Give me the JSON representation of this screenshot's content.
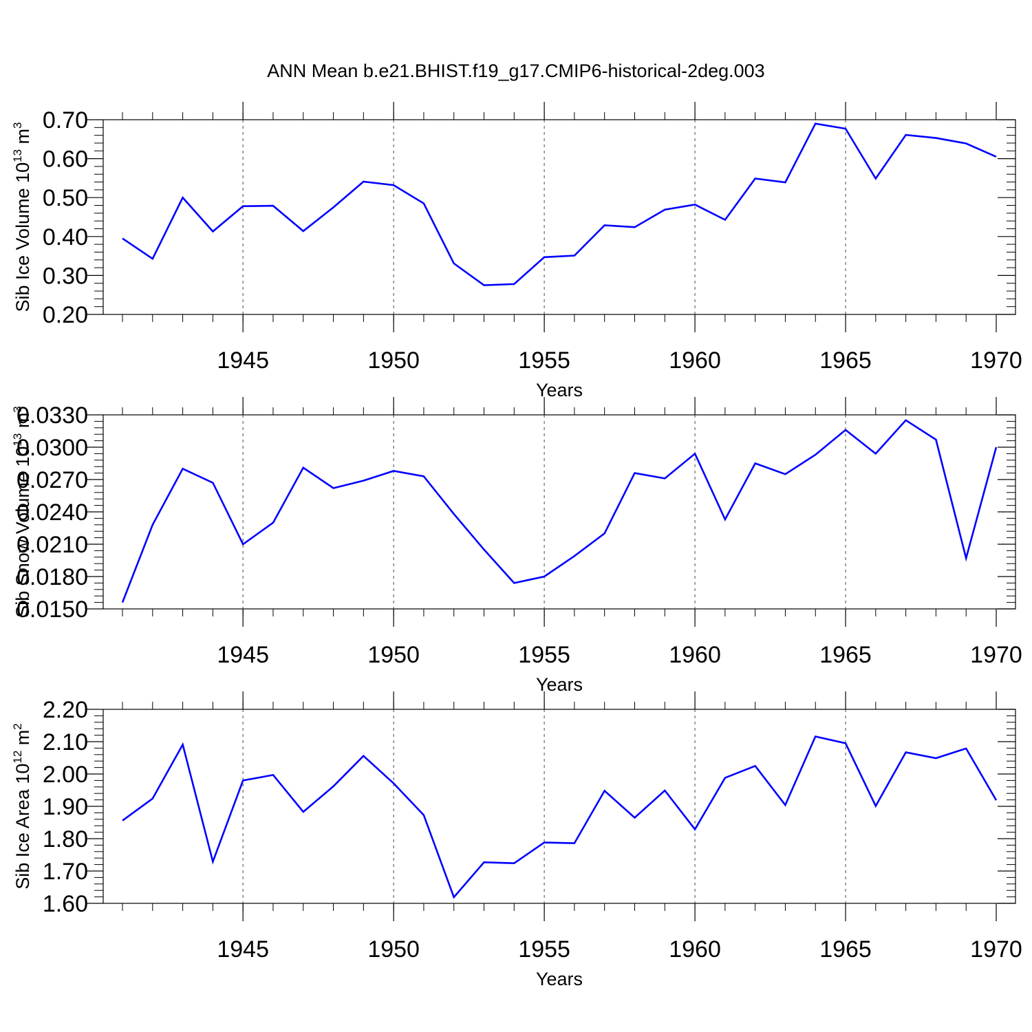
{
  "title": "ANN Mean b.e21.BHIST.f19_g17.CMIP6-historical-2deg.003",
  "line_color": "#0000ff",
  "x_ticks": [
    1945,
    1950,
    1955,
    1960,
    1965,
    1970
  ],
  "chart_data": [
    {
      "type": "line",
      "ylabel_base": "Sib Ice Volume 10",
      "ylabel_exp": "13",
      "ylabel_unit": " m",
      "ylabel_unit_exp": "3",
      "xlabel": "Years",
      "xlim": [
        1941,
        1970
      ],
      "ylim": [
        0.2,
        0.7
      ],
      "y_ticks": [
        "0.20",
        "0.30",
        "0.40",
        "0.50",
        "0.60",
        "0.70"
      ],
      "x": [
        1941,
        1942,
        1943,
        1944,
        1945,
        1946,
        1947,
        1948,
        1949,
        1950,
        1951,
        1952,
        1953,
        1954,
        1955,
        1956,
        1957,
        1958,
        1959,
        1960,
        1961,
        1962,
        1963,
        1964,
        1965,
        1966,
        1967,
        1968,
        1969,
        1970
      ],
      "values": [
        0.395,
        0.343,
        0.5,
        0.413,
        0.478,
        0.479,
        0.414,
        0.475,
        0.541,
        0.532,
        0.485,
        0.331,
        0.275,
        0.278,
        0.347,
        0.351,
        0.429,
        0.424,
        0.469,
        0.482,
        0.443,
        0.549,
        0.539,
        0.69,
        0.677,
        0.549,
        0.661,
        0.653,
        0.639,
        0.605
      ]
    },
    {
      "type": "line",
      "ylabel_base": "Sib Snow Volume 10",
      "ylabel_exp": "13",
      "ylabel_unit": " m",
      "ylabel_unit_exp": "3",
      "xlabel": "Years",
      "xlim": [
        1941,
        1970
      ],
      "ylim": [
        0.015,
        0.033
      ],
      "y_ticks": [
        "0.0150",
        "0.0180",
        "0.0210",
        "0.0240",
        "0.0270",
        "0.0300",
        "0.0330"
      ],
      "x": [
        1941,
        1942,
        1943,
        1944,
        1945,
        1946,
        1947,
        1948,
        1949,
        1950,
        1951,
        1952,
        1953,
        1954,
        1955,
        1956,
        1957,
        1958,
        1959,
        1960,
        1961,
        1962,
        1963,
        1964,
        1965,
        1966,
        1967,
        1968,
        1969,
        1970
      ],
      "values": [
        0.0156,
        0.0228,
        0.028,
        0.0267,
        0.021,
        0.023,
        0.0281,
        0.0262,
        0.0269,
        0.0278,
        0.0273,
        0.0238,
        0.0205,
        0.0174,
        0.018,
        0.0199,
        0.022,
        0.0276,
        0.0271,
        0.0294,
        0.0233,
        0.0285,
        0.0275,
        0.0293,
        0.0316,
        0.0294,
        0.0325,
        0.0307,
        0.0197,
        0.03
      ]
    },
    {
      "type": "line",
      "ylabel_base": "Sib Ice Area 10",
      "ylabel_exp": "12",
      "ylabel_unit": " m",
      "ylabel_unit_exp": "2",
      "xlabel": "Years",
      "xlim": [
        1941,
        1970
      ],
      "ylim": [
        1.6,
        2.2
      ],
      "y_ticks": [
        "1.60",
        "1.70",
        "1.80",
        "1.90",
        "2.00",
        "2.10",
        "2.20"
      ],
      "x": [
        1941,
        1942,
        1943,
        1944,
        1945,
        1946,
        1947,
        1948,
        1949,
        1950,
        1951,
        1952,
        1953,
        1954,
        1955,
        1956,
        1957,
        1958,
        1959,
        1960,
        1961,
        1962,
        1963,
        1964,
        1965,
        1966,
        1967,
        1968,
        1969,
        1970
      ],
      "values": [
        1.856,
        1.924,
        2.091,
        1.729,
        1.98,
        1.997,
        1.883,
        1.962,
        2.056,
        1.971,
        1.873,
        1.619,
        1.727,
        1.724,
        1.788,
        1.786,
        1.948,
        1.865,
        1.949,
        1.829,
        1.988,
        2.025,
        1.904,
        2.116,
        2.095,
        1.901,
        2.067,
        2.049,
        2.079,
        1.919
      ]
    }
  ]
}
